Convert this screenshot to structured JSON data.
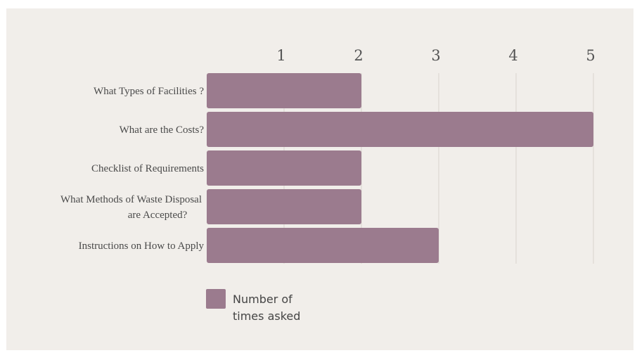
{
  "chart_data": {
    "type": "bar",
    "orientation": "horizontal",
    "categories": [
      [
        "What Types of  Facilities ?"
      ],
      [
        "What are the Costs?"
      ],
      [
        "Checklist of Requirements"
      ],
      [
        "What Methods of Waste Disposal",
        "are Accepted?"
      ],
      [
        "Instructions on How to Apply"
      ]
    ],
    "series": [
      {
        "name": "Number of times asked",
        "values": [
          2,
          5,
          2,
          2,
          3
        ]
      }
    ],
    "xlim": [
      0,
      5
    ],
    "xticks": [
      "1",
      "2",
      "3",
      "4",
      "5"
    ],
    "x_axis_position": "top",
    "grid": "vertical",
    "legend": {
      "placement": "bottom-left",
      "lines": [
        "Number of",
        "times asked"
      ]
    },
    "colors": {
      "bar": "#9b7b8e",
      "grid": "#d9d4cf",
      "background": "#f1eeea"
    }
  }
}
